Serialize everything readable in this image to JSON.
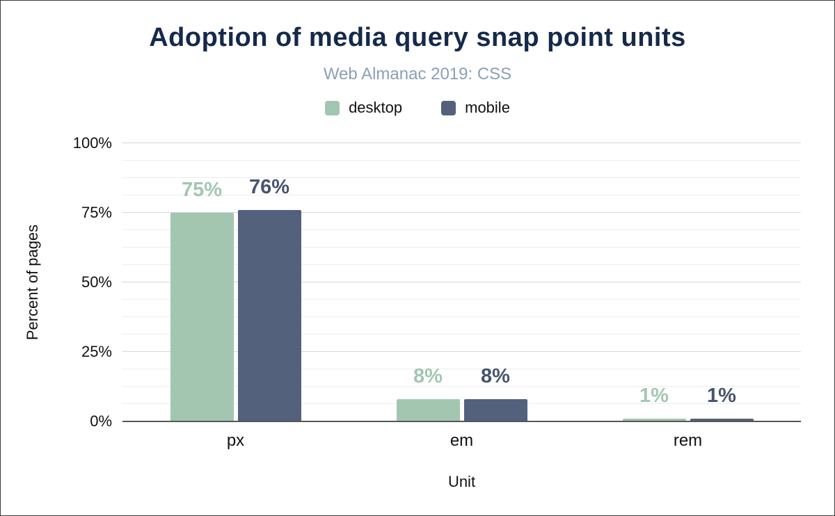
{
  "title": "Adoption of media query snap point units",
  "subtitle": "Web Almanac 2019: CSS",
  "axes": {
    "y_title": "Percent of pages",
    "x_title": "Unit",
    "y_ticks": [
      "0%",
      "25%",
      "50%",
      "75%",
      "100%"
    ]
  },
  "colors": {
    "title": "#15294b",
    "subtitle": "#8ba0b5",
    "desktop": "#a3c6b1",
    "mobile": "#53617c",
    "desktop_label": "#a3c6b1",
    "mobile_label": "#47536e",
    "gridline_major": "#d6d6d6",
    "gridline_minor": "#ededed",
    "axis_line": "#565656"
  },
  "chart_data": {
    "type": "bar",
    "title": "Adoption of media query snap point units",
    "subtitle": "Web Almanac 2019: CSS",
    "categories": [
      "px",
      "em",
      "rem"
    ],
    "series": [
      {
        "name": "desktop",
        "color": "#a3c6b1",
        "label_color": "#a3c6b1",
        "values": [
          75,
          8,
          1
        ],
        "labels": [
          "75%",
          "8%",
          "1%"
        ]
      },
      {
        "name": "mobile",
        "color": "#53617c",
        "label_color": "#47536e",
        "values": [
          76,
          8,
          1
        ],
        "labels": [
          "76%",
          "8%",
          "1%"
        ]
      }
    ],
    "xlabel": "Unit",
    "ylabel": "Percent of pages",
    "ylim": [
      0,
      100
    ],
    "y_tick_step": 25,
    "grid": "horizontal major + minor lines",
    "legend_position": "top"
  }
}
